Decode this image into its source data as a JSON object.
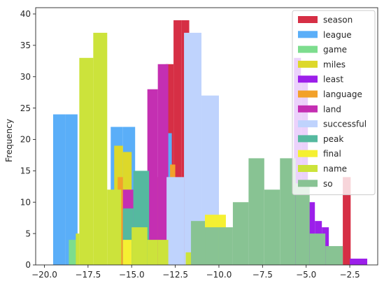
{
  "chart_data": {
    "type": "bar",
    "subtype": "overlapping-histogram",
    "title": "",
    "xlabel": "",
    "ylabel": "Frequency",
    "xlim": [
      -20.5,
      -0.9
    ],
    "ylim": [
      0,
      41
    ],
    "xticks": [
      -20.0,
      -17.5,
      -15.0,
      -12.5,
      -10.0,
      -7.5,
      -5.0,
      -2.5
    ],
    "xtick_labels": [
      "−20.0",
      "−17.5",
      "−15.0",
      "−12.5",
      "−10.0",
      "−7.5",
      "−5.0",
      "−2.5"
    ],
    "yticks": [
      0,
      5,
      10,
      15,
      20,
      25,
      30,
      35,
      40
    ],
    "grid": false,
    "legend_position": "top-right",
    "series": [
      {
        "name": "season",
        "color": "#d62f45",
        "alpha": 1.0,
        "bins": [
          {
            "x0": -13.5,
            "x1": -13.05,
            "count": 14
          },
          {
            "x0": -13.05,
            "x1": -12.6,
            "count": 32
          },
          {
            "x0": -12.6,
            "x1": -12.15,
            "count": 39
          },
          {
            "x0": -12.15,
            "x1": -11.7,
            "count": 39
          },
          {
            "x0": -2.9,
            "x1": -2.45,
            "count": 14
          }
        ]
      },
      {
        "name": "league",
        "color": "#5aaef8",
        "alpha": 1.0,
        "bins": [
          {
            "x0": -19.5,
            "x1": -18.8,
            "count": 24
          },
          {
            "x0": -18.8,
            "x1": -18.1,
            "count": 24
          },
          {
            "x0": -16.2,
            "x1": -15.5,
            "count": 22
          },
          {
            "x0": -15.5,
            "x1": -14.8,
            "count": 22
          },
          {
            "x0": -13.4,
            "x1": -12.7,
            "count": 21
          }
        ]
      },
      {
        "name": "game",
        "color": "#7ddd8e",
        "alpha": 1.0,
        "bins": [
          {
            "x0": -18.6,
            "x1": -18.1,
            "count": 4
          }
        ]
      },
      {
        "name": "miles",
        "color": "#ddd82a",
        "alpha": 1.0,
        "bins": [
          {
            "x0": -16.0,
            "x1": -15.5,
            "count": 19
          },
          {
            "x0": -15.5,
            "x1": -15.0,
            "count": 18
          },
          {
            "x0": -15.0,
            "x1": -14.5,
            "count": 6
          }
        ]
      },
      {
        "name": "least",
        "color": "#9c1fea",
        "alpha": 1.0,
        "bins": [
          {
            "x0": -5.7,
            "x1": -5.3,
            "count": 33
          },
          {
            "x0": -5.3,
            "x1": -4.9,
            "count": 30
          },
          {
            "x0": -4.9,
            "x1": -4.5,
            "count": 10
          },
          {
            "x0": -4.5,
            "x1": -4.1,
            "count": 7
          },
          {
            "x0": -4.1,
            "x1": -3.7,
            "count": 6
          },
          {
            "x0": -2.5,
            "x1": -1.5,
            "count": 1
          }
        ]
      },
      {
        "name": "language",
        "color": "#f2a12a",
        "alpha": 1.0,
        "bins": [
          {
            "x0": -15.8,
            "x1": -15.5,
            "count": 14
          },
          {
            "x0": -12.8,
            "x1": -12.5,
            "count": 16
          },
          {
            "x0": -10.3,
            "x1": -10.0,
            "count": 10
          }
        ]
      },
      {
        "name": "land",
        "color": "#c42fb2",
        "alpha": 1.0,
        "bins": [
          {
            "x0": -15.5,
            "x1": -14.9,
            "count": 12
          },
          {
            "x0": -14.1,
            "x1": -13.5,
            "count": 28
          },
          {
            "x0": -13.5,
            "x1": -12.9,
            "count": 32
          }
        ]
      },
      {
        "name": "successful",
        "color": "#bfd3fd",
        "alpha": 1.0,
        "bins": [
          {
            "x0": -13.0,
            "x1": -12.0,
            "count": 14
          },
          {
            "x0": -12.0,
            "x1": -11.0,
            "count": 37
          },
          {
            "x0": -11.0,
            "x1": -10.0,
            "count": 27
          }
        ]
      },
      {
        "name": "peak",
        "color": "#55b99f",
        "alpha": 1.0,
        "bins": [
          {
            "x0": -15.5,
            "x1": -14.9,
            "count": 9
          },
          {
            "x0": -14.9,
            "x1": -14.0,
            "count": 15
          }
        ]
      },
      {
        "name": "final",
        "color": "#f5f032",
        "alpha": 1.0,
        "bins": [
          {
            "x0": -15.5,
            "x1": -15.0,
            "count": 4
          },
          {
            "x0": -10.8,
            "x1": -10.2,
            "count": 8
          },
          {
            "x0": -10.2,
            "x1": -9.6,
            "count": 8
          }
        ]
      },
      {
        "name": "name",
        "color": "#cce33b",
        "alpha": 1.0,
        "bins": [
          {
            "x0": -18.2,
            "x1": -18.0,
            "count": 5
          },
          {
            "x0": -18.0,
            "x1": -17.2,
            "count": 33
          },
          {
            "x0": -17.2,
            "x1": -16.4,
            "count": 37
          },
          {
            "x0": -16.4,
            "x1": -15.6,
            "count": 12
          },
          {
            "x0": -15.0,
            "x1": -14.1,
            "count": 6
          },
          {
            "x0": -14.1,
            "x1": -13.5,
            "count": 4
          },
          {
            "x0": -13.5,
            "x1": -12.9,
            "count": 4
          },
          {
            "x0": -11.9,
            "x1": -11.3,
            "count": 2
          }
        ]
      },
      {
        "name": "so",
        "color": "#88c393",
        "alpha": 1.0,
        "bins": [
          {
            "x0": -11.6,
            "x1": -10.8,
            "count": 7
          },
          {
            "x0": -10.8,
            "x1": -10.0,
            "count": 6
          },
          {
            "x0": -10.0,
            "x1": -9.2,
            "count": 6
          },
          {
            "x0": -9.2,
            "x1": -8.3,
            "count": 10
          },
          {
            "x0": -8.3,
            "x1": -7.4,
            "count": 17
          },
          {
            "x0": -7.4,
            "x1": -6.5,
            "count": 12
          },
          {
            "x0": -6.5,
            "x1": -5.6,
            "count": 17
          },
          {
            "x0": -5.6,
            "x1": -4.8,
            "count": 13
          },
          {
            "x0": -4.8,
            "x1": -3.9,
            "count": 5
          },
          {
            "x0": -3.9,
            "x1": -2.9,
            "count": 3
          }
        ]
      }
    ]
  }
}
